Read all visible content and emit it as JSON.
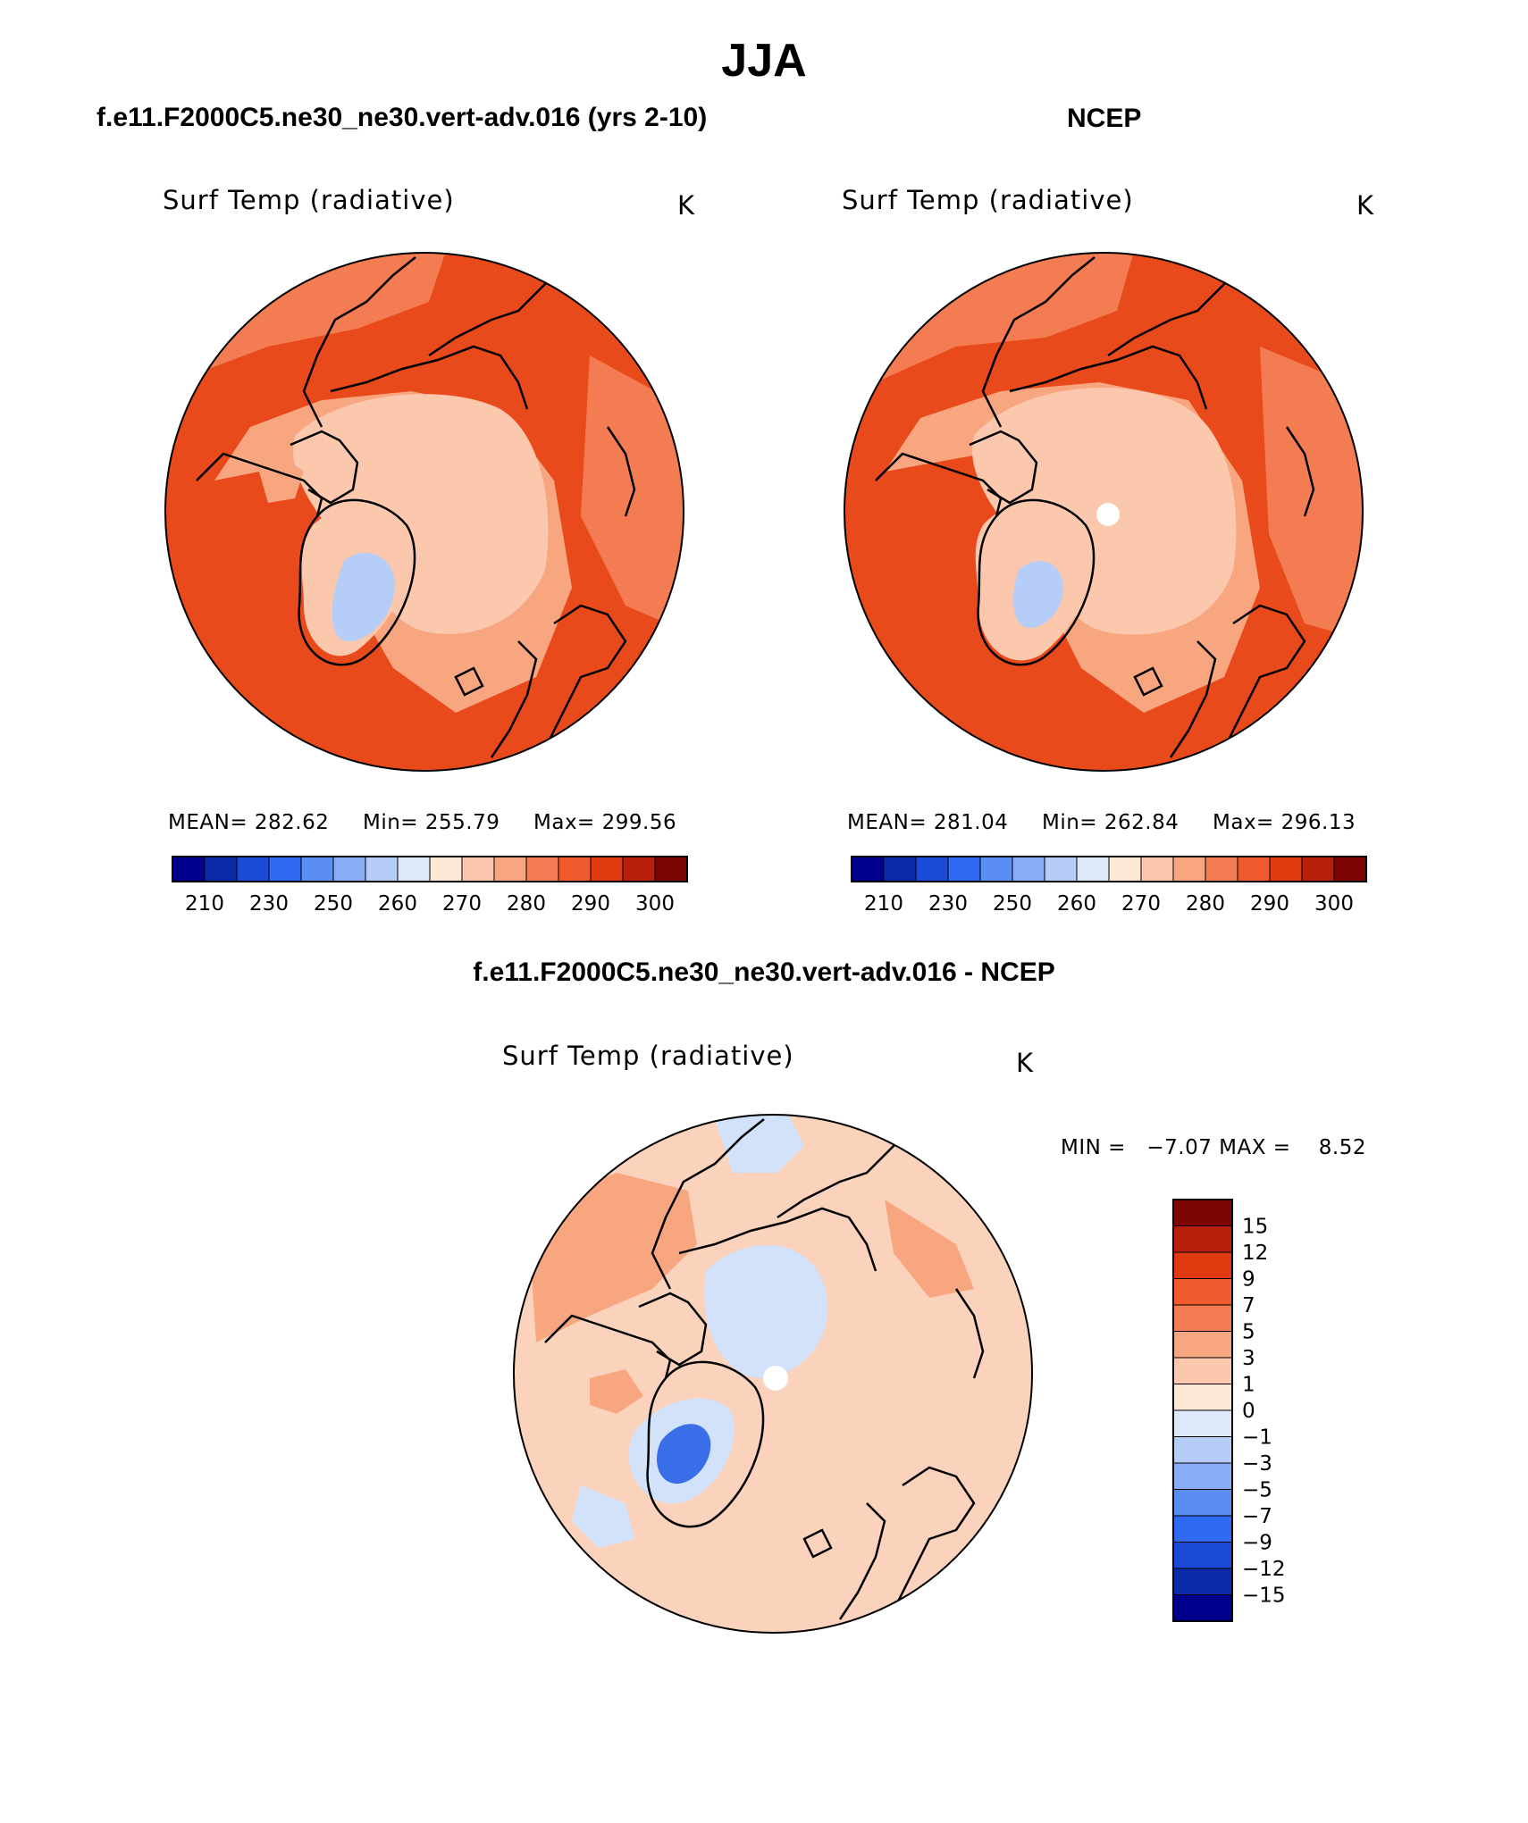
{
  "figure": {
    "title": "JJA"
  },
  "panels": [
    {
      "title": "f.e11.F2000C5.ne30_ne30.vert-adv.016 (yrs 2-10)",
      "variable": "Surf Temp (radiative)",
      "units": "K",
      "stats": {
        "mean": "MEAN= 282.62",
        "min": "Min= 255.79",
        "max": "Max= 299.56"
      }
    },
    {
      "title": "NCEP",
      "variable": "Surf Temp (radiative)",
      "units": "K",
      "stats": {
        "mean": "MEAN= 281.04",
        "min": "Min= 262.84",
        "max": "Max= 296.13"
      }
    },
    {
      "title": "f.e11.F2000C5.ne30_ne30.vert-adv.016 - NCEP",
      "variable": "Surf Temp (radiative)",
      "units": "K",
      "stats": {
        "minmax": "MIN =   −7.07 MAX =    8.52"
      }
    }
  ],
  "colorbars": {
    "absolute": {
      "colors": [
        "#00008c",
        "#0a2aa8",
        "#1a4ad6",
        "#2f6af2",
        "#5a8ef4",
        "#88acf5",
        "#b5cdf7",
        "#dde9f9",
        "#fde8d6",
        "#fbc8ae",
        "#f8a680",
        "#f47c52",
        "#f05a2c",
        "#e03a10",
        "#b8200c",
        "#7d0504"
      ],
      "labels": [
        "210",
        "230",
        "250",
        "260",
        "270",
        "280",
        "290",
        "300"
      ]
    },
    "difference": {
      "colors": [
        "#7d0504",
        "#b8200c",
        "#e03a10",
        "#f05a2c",
        "#f47c52",
        "#f8a680",
        "#fbc8ae",
        "#fde8d6",
        "#dde9f9",
        "#b5cdf7",
        "#88acf5",
        "#5a8ef4",
        "#2f6af2",
        "#1a4ad6",
        "#0a2aa8",
        "#00008c"
      ],
      "labels": [
        "15",
        "12",
        "9",
        "7",
        "5",
        "3",
        "1",
        "0",
        "−1",
        "−3",
        "−5",
        "−7",
        "−9",
        "−12",
        "−15"
      ]
    }
  },
  "map_colors": {
    "warm_outer": "#e84a1c",
    "warm_mid": "#f47c52",
    "warm_light": "#f8a680",
    "pale": "#fbc8ae",
    "cool_light": "#b5cdf7",
    "diff_base": "#fbd3bd",
    "diff_cool": "#d2e2fa",
    "diff_blue": "#3a6ee8"
  }
}
